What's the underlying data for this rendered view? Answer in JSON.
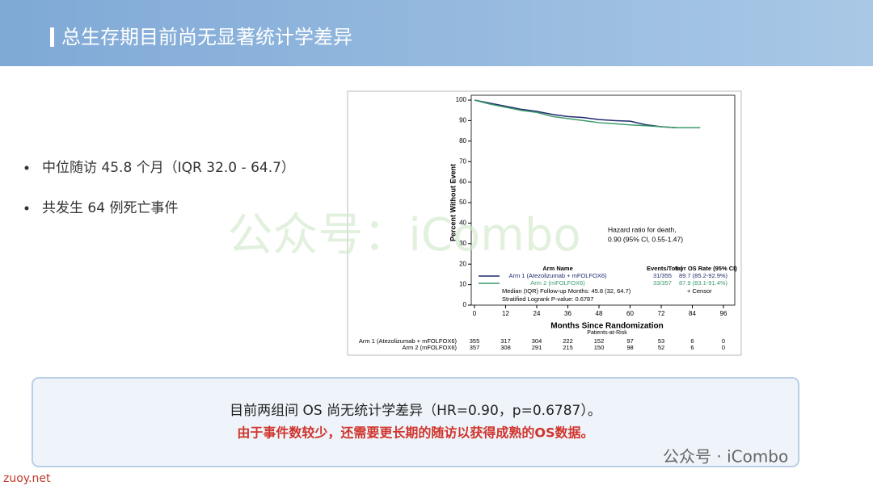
{
  "header": {
    "title": "总生存期目前尚无显著统计学差异"
  },
  "bullets": [
    "中位随访 45.8 个月（IQR 32.0 - 64.7）",
    "共发生 64 例死亡事件"
  ],
  "watermark": "公众号：iCombo",
  "conclusion": {
    "line1": "目前两组间 OS 尚无统计学差异（HR=0.90，p=0.6787）。",
    "line2": "由于事件数较少，还需要更长期的随访以获得成熟的OS数据。"
  },
  "footer": {
    "wechat": "公众号 · iCombo",
    "site": "zuoy.net"
  },
  "chart_data": {
    "type": "line",
    "xlabel": "Months Since Randomization",
    "ylabel": "Percent Without Event",
    "xlim": [
      0,
      96
    ],
    "xticks": [
      0,
      12,
      24,
      36,
      48,
      60,
      72,
      84,
      96
    ],
    "ylim": [
      0,
      100
    ],
    "yticks": [
      0,
      10,
      20,
      30,
      40,
      50,
      60,
      70,
      80,
      90,
      100
    ],
    "x": [
      0,
      6,
      12,
      18,
      24,
      30,
      36,
      42,
      48,
      54,
      60,
      66,
      72,
      78,
      84,
      87
    ],
    "series": [
      {
        "name": "Arm 1 (Atezolizumab + mFOLFOX6)",
        "color": "#1f2a6e",
        "events": "31/355",
        "rate": "89.7 (85.2-92.9%)",
        "values": [
          100,
          98.5,
          97,
          95.5,
          94.5,
          93,
          92,
          91.5,
          90.5,
          90,
          89.7,
          88,
          87,
          86.5,
          86.5,
          86.5
        ],
        "at_risk": [
          355,
          317,
          304,
          222,
          152,
          97,
          53,
          6,
          0
        ]
      },
      {
        "name": "Arm 2 (mFOLFOX6)",
        "color": "#3a9a6a",
        "events": "33/357",
        "rate": "87.9 (83.1-91.4%)",
        "values": [
          100,
          98,
          96.5,
          95,
          94,
          92,
          91,
          90,
          89,
          88.5,
          87.9,
          87.5,
          87,
          86.5,
          86.5,
          86.5
        ],
        "at_risk": [
          357,
          308,
          291,
          215,
          150,
          98,
          52,
          6,
          0
        ]
      }
    ],
    "legend_header": [
      "Arm Name",
      "Events/Total",
      "5-yr OS Rate (95% CI)"
    ],
    "censor": "+ Censor",
    "notes": [
      "Median (IQR) Follow-up Months: 45.8 (32, 64.7)",
      "Stratified Logrank P-value: 0.6787"
    ],
    "annotation": [
      "Hazard ratio for death,",
      "0.90 (95% CI, 0.55-1.47)"
    ],
    "risk_title": "Patients-at-Risk"
  }
}
